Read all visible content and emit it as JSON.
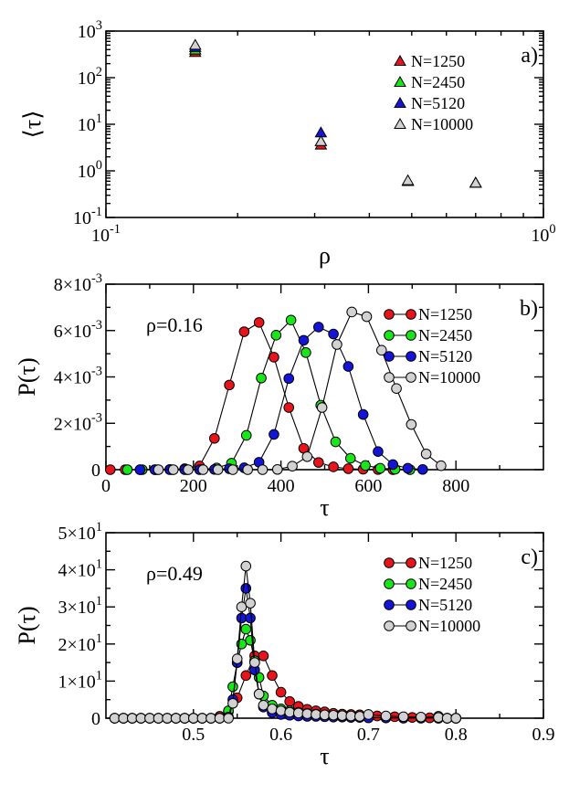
{
  "colors": {
    "N1250": "#e8141c",
    "N2450": "#17e617",
    "N5120": "#1414d9",
    "N10000": "#d2d2d2",
    "marker_stroke": "#000000"
  },
  "chart_data": [
    {
      "id": "a",
      "type": "scatter",
      "panel_label": "a)",
      "xscale": "log",
      "yscale": "log",
      "xlim": [
        0.1,
        1.0
      ],
      "ylim": [
        0.1,
        1000
      ],
      "xlabel": "ρ",
      "ylabel": "⟨τ⟩",
      "xticks": [
        {
          "v": 0.1,
          "m": "10",
          "e": "-1"
        },
        {
          "v": 1.0,
          "m": "10",
          "e": "0"
        }
      ],
      "yticks": [
        {
          "v": 0.1,
          "m": "10",
          "e": "-1"
        },
        {
          "v": 1,
          "m": "10",
          "e": "0"
        },
        {
          "v": 10,
          "m": "10",
          "e": "1"
        },
        {
          "v": 100,
          "m": "10",
          "e": "2"
        },
        {
          "v": 1000,
          "m": "10",
          "e": "3"
        }
      ],
      "legend": "top-right",
      "marker": "triangle",
      "series": [
        {
          "name": "N=1250",
          "color_key": "N1250",
          "x": [
            0.16,
            0.31,
            0.49,
            0.7
          ],
          "y": [
            350,
            3.6,
            0.6,
            0.55
          ]
        },
        {
          "name": "N=2450",
          "color_key": "N2450",
          "x": [
            0.16,
            0.31,
            0.49,
            0.7
          ],
          "y": [
            395,
            4.3,
            0.6,
            0.55
          ]
        },
        {
          "name": "N=5120",
          "color_key": "N5120",
          "x": [
            0.16,
            0.31,
            0.49,
            0.7
          ],
          "y": [
            445,
            6.6,
            0.6,
            0.55
          ]
        },
        {
          "name": "N=10000",
          "color_key": "N10000",
          "x": [
            0.16,
            0.31,
            0.49,
            0.7
          ],
          "y": [
            500,
            4.3,
            0.62,
            0.55
          ]
        }
      ]
    },
    {
      "id": "b",
      "type": "line",
      "panel_label": "b)",
      "annotation": "ρ=0.16",
      "xlim": [
        0,
        1000
      ],
      "ylim": [
        0,
        0.008
      ],
      "xlabel": "τ",
      "ylabel": "P(τ)",
      "xticks": [
        {
          "v": 0,
          "t": "0"
        },
        {
          "v": 200,
          "t": "200"
        },
        {
          "v": 400,
          "t": "400"
        },
        {
          "v": 600,
          "t": "600"
        },
        {
          "v": 800,
          "t": "800"
        }
      ],
      "xminor": [
        100,
        300,
        500,
        700,
        900
      ],
      "yticks": [
        {
          "v": 0,
          "t": "0"
        },
        {
          "v": 0.002,
          "m": "2×10",
          "e": "-3"
        },
        {
          "v": 0.004,
          "m": "4×10",
          "e": "-3"
        },
        {
          "v": 0.006,
          "m": "6×10",
          "e": "-3"
        },
        {
          "v": 0.008,
          "m": "8×10",
          "e": "-3"
        }
      ],
      "yminor": [
        0.001,
        0.003,
        0.005,
        0.007
      ],
      "legend": "top-right",
      "marker": "circle",
      "series": [
        {
          "name": "N=1250",
          "color_key": "N1250",
          "x": [
            10,
            44,
            78,
            112,
            146,
            180,
            214,
            248,
            282,
            316,
            350,
            384,
            418,
            452,
            486,
            520,
            554,
            588,
            622,
            656
          ],
          "y": [
            0,
            0,
            0,
            0,
            1e-05,
            4e-05,
            0.00016,
            0.00135,
            0.00365,
            0.00595,
            0.00635,
            0.00485,
            0.00268,
            0.00092,
            0.00031,
            0.00012,
            4e-05,
            2e-05,
            5e-06,
            0
          ]
        },
        {
          "name": "N=2450",
          "color_key": "N2450",
          "x": [
            49,
            83,
            117,
            151,
            185,
            219,
            253,
            287,
            321,
            355,
            389,
            423,
            457,
            491,
            525,
            559,
            593,
            627,
            661,
            695
          ],
          "y": [
            0,
            0,
            0,
            0,
            0,
            1e-05,
            7e-05,
            0.00028,
            0.00148,
            0.00395,
            0.0058,
            0.00645,
            0.00505,
            0.00278,
            0.0012,
            0.00049,
            0.00018,
            6e-05,
            2e-05,
            0
          ]
        },
        {
          "name": "N=5120",
          "color_key": "N5120",
          "x": [
            78,
            112,
            146,
            180,
            214,
            248,
            282,
            316,
            350,
            384,
            418,
            452,
            486,
            520,
            554,
            588,
            622,
            656,
            690,
            724
          ],
          "y": [
            0,
            0,
            0,
            0,
            0,
            1e-05,
            4e-05,
            8e-05,
            0.00032,
            0.00152,
            0.00393,
            0.00558,
            0.00615,
            0.00585,
            0.00445,
            0.00238,
            0.00078,
            0.00022,
            6e-05,
            1e-05
          ]
        },
        {
          "name": "N=10000",
          "color_key": "N10000",
          "x": [
            120,
            154,
            188,
            222,
            256,
            290,
            324,
            358,
            392,
            426,
            460,
            494,
            528,
            562,
            596,
            630,
            664,
            698,
            732,
            766
          ],
          "y": [
            0,
            0,
            0,
            0,
            0,
            0,
            0,
            0,
            1e-05,
            0.00015,
            0.00056,
            0.00268,
            0.0054,
            0.0068,
            0.0066,
            0.00515,
            0.0035,
            0.00195,
            0.00068,
            0.00017
          ]
        }
      ]
    },
    {
      "id": "c",
      "type": "line",
      "panel_label": "c)",
      "annotation": "ρ=0.49",
      "xlim": [
        0.4,
        0.9
      ],
      "ylim": [
        0,
        50
      ],
      "xlabel": "τ",
      "ylabel": "P(τ)",
      "xticks": [
        {
          "v": 0.5,
          "t": "0.5"
        },
        {
          "v": 0.6,
          "t": "0.6"
        },
        {
          "v": 0.7,
          "t": "0.7"
        },
        {
          "v": 0.8,
          "t": "0.8"
        },
        {
          "v": 0.9,
          "t": "0.9"
        }
      ],
      "xminor": [
        0.45,
        0.55,
        0.65,
        0.75,
        0.85
      ],
      "yticks": [
        {
          "v": 0,
          "t": "0"
        },
        {
          "v": 10,
          "m": "1×10",
          "e": "1"
        },
        {
          "v": 20,
          "m": "2×10",
          "e": "1"
        },
        {
          "v": 30,
          "m": "3×10",
          "e": "1"
        },
        {
          "v": 40,
          "m": "4×10",
          "e": "1"
        },
        {
          "v": 50,
          "m": "5×10",
          "e": "1"
        }
      ],
      "yminor": [
        5,
        15,
        25,
        35,
        45
      ],
      "legend": "top-right",
      "marker": "circle",
      "series": [
        {
          "name": "N=1250",
          "color_key": "N1250",
          "x": [
            0.41,
            0.42,
            0.43,
            0.44,
            0.45,
            0.46,
            0.47,
            0.48,
            0.49,
            0.5,
            0.51,
            0.52,
            0.53,
            0.54,
            0.55,
            0.56,
            0.57,
            0.58,
            0.59,
            0.6,
            0.61,
            0.62,
            0.63,
            0.64,
            0.65,
            0.66,
            0.67,
            0.68,
            0.69,
            0.7,
            0.71,
            0.72,
            0.73,
            0.74,
            0.75,
            0.76,
            0.77,
            0.78,
            0.79,
            0.8
          ],
          "y": [
            0,
            0,
            0,
            0,
            0,
            0,
            0,
            0,
            0,
            0,
            0,
            0,
            0.5,
            1.8,
            5.5,
            11.5,
            16.8,
            16.8,
            11.5,
            7,
            4.5,
            3.2,
            2.4,
            2,
            1.7,
            1.3,
            1.1,
            1,
            0.9,
            0.8,
            0.6,
            0.5,
            0.4,
            0.3,
            0.2,
            0.1,
            0.1,
            0,
            0,
            0
          ]
        },
        {
          "name": "N=2450",
          "color_key": "N2450",
          "x": [
            0.41,
            0.42,
            0.43,
            0.44,
            0.45,
            0.46,
            0.47,
            0.48,
            0.49,
            0.5,
            0.51,
            0.52,
            0.53,
            0.54,
            0.545,
            0.55,
            0.555,
            0.56,
            0.565,
            0.57,
            0.575,
            0.58,
            0.59,
            0.6,
            0.61,
            0.62,
            0.63,
            0.64,
            0.65,
            0.66,
            0.67,
            0.68,
            0.69,
            0.7,
            0.72,
            0.74,
            0.76,
            0.78,
            0.79,
            0.8
          ],
          "y": [
            0,
            0,
            0,
            0,
            0,
            0,
            0,
            0,
            0,
            0,
            0,
            0,
            0,
            2,
            8.5,
            15,
            20,
            24,
            21,
            15.5,
            11,
            6,
            3.5,
            2.5,
            2,
            1.6,
            1.3,
            1.1,
            0.9,
            0.7,
            0.5,
            0.4,
            0.3,
            0.2,
            0.1,
            0.1,
            0.1,
            0.5,
            0,
            0
          ]
        },
        {
          "name": "N=5120",
          "color_key": "N5120",
          "x": [
            0.41,
            0.42,
            0.43,
            0.44,
            0.45,
            0.46,
            0.47,
            0.48,
            0.49,
            0.5,
            0.51,
            0.52,
            0.53,
            0.54,
            0.545,
            0.55,
            0.555,
            0.56,
            0.565,
            0.57,
            0.575,
            0.58,
            0.59,
            0.6,
            0.61,
            0.62,
            0.63,
            0.64,
            0.65,
            0.66,
            0.67,
            0.68,
            0.69,
            0.7,
            0.72,
            0.74,
            0.76,
            0.78,
            0.79,
            0.8
          ],
          "y": [
            0,
            0,
            0,
            0,
            0,
            0,
            0,
            0,
            0,
            0,
            0,
            0,
            0,
            0.3,
            5,
            15,
            27,
            35,
            27,
            13,
            6.5,
            3,
            1.5,
            1,
            0.8,
            0.6,
            0.5,
            0.5,
            0.4,
            0.3,
            0.3,
            0.2,
            0.2,
            0.1,
            0.1,
            0,
            0,
            0,
            0,
            0
          ]
        },
        {
          "name": "N=10000",
          "color_key": "N10000",
          "x": [
            0.41,
            0.42,
            0.43,
            0.44,
            0.45,
            0.46,
            0.47,
            0.48,
            0.49,
            0.5,
            0.51,
            0.52,
            0.53,
            0.54,
            0.545,
            0.55,
            0.555,
            0.56,
            0.565,
            0.57,
            0.575,
            0.58,
            0.59,
            0.6,
            0.61,
            0.62,
            0.63,
            0.64,
            0.65,
            0.66,
            0.67,
            0.68,
            0.69,
            0.7,
            0.72,
            0.74,
            0.76,
            0.78,
            0.79,
            0.8
          ],
          "y": [
            0,
            0,
            0,
            0,
            0,
            0,
            0,
            0,
            0,
            0,
            0,
            0,
            0,
            0,
            4,
            16,
            30,
            41,
            31,
            15,
            6.5,
            3.5,
            2.5,
            2,
            1.6,
            1.4,
            1.2,
            1,
            0.9,
            0.8,
            0.7,
            0.6,
            0.5,
            1,
            0.6,
            0.4,
            0.3,
            0.2,
            0,
            0
          ]
        }
      ]
    }
  ]
}
